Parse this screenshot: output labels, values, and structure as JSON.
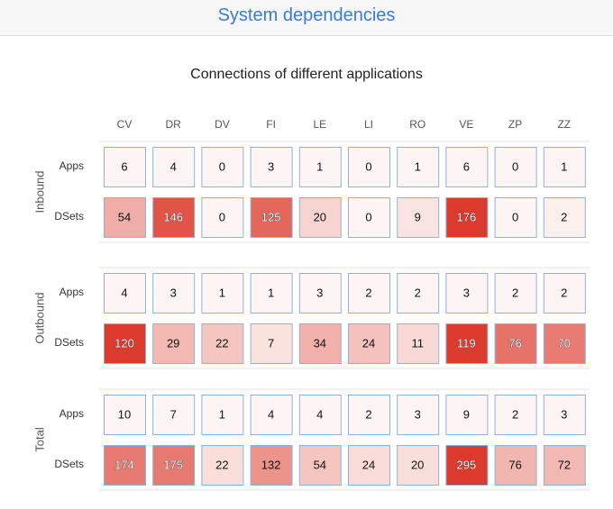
{
  "header": {
    "title": "System dependencies"
  },
  "chart_data": {
    "type": "heatmap",
    "title": "Connections of different applications",
    "columns": [
      "CV",
      "DR",
      "DV",
      "FI",
      "LE",
      "LI",
      "RO",
      "VE",
      "ZP",
      "ZZ"
    ],
    "groups": [
      {
        "name": "Inbound",
        "rows": [
          {
            "label": "Apps",
            "values": [
              6,
              4,
              0,
              3,
              1,
              0,
              1,
              6,
              0,
              1
            ]
          },
          {
            "label": "DSets",
            "values": [
              54,
              146,
              0,
              125,
              20,
              0,
              9,
              176,
              0,
              2
            ]
          }
        ]
      },
      {
        "name": "Outbound",
        "rows": [
          {
            "label": "Apps",
            "values": [
              4,
              3,
              1,
              1,
              3,
              2,
              2,
              3,
              2,
              2
            ]
          },
          {
            "label": "DSets",
            "values": [
              120,
              29,
              22,
              7,
              34,
              24,
              11,
              119,
              76,
              70
            ]
          }
        ]
      },
      {
        "name": "Total",
        "rows": [
          {
            "label": "Apps",
            "values": [
              10,
              7,
              1,
              4,
              4,
              2,
              3,
              9,
              2,
              3
            ]
          },
          {
            "label": "DSets",
            "values": [
              174,
              175,
              22,
              132,
              54,
              24,
              20,
              295,
              76,
              72
            ]
          }
        ]
      }
    ],
    "colors": {
      "low": "#fdf5f3",
      "high": "#dc3a2c",
      "border": "#8fb2d8",
      "separator": "#e3e3e3"
    }
  }
}
